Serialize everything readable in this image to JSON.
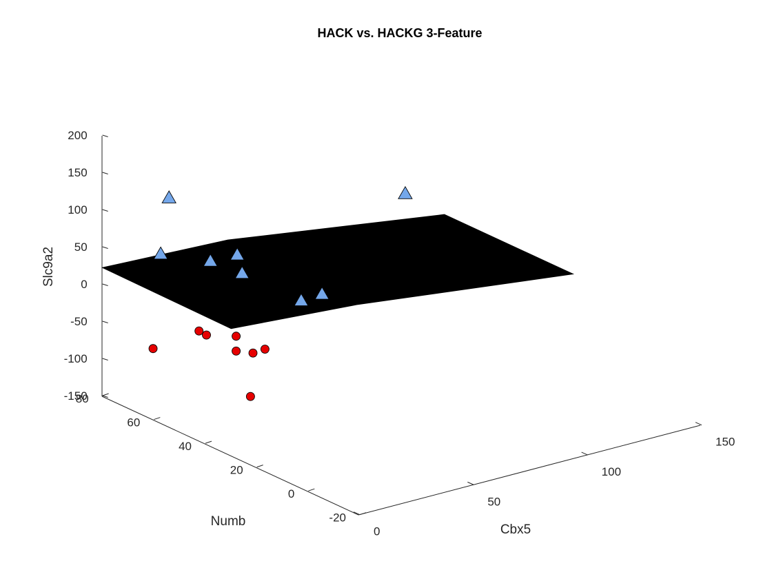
{
  "chart_data": {
    "type": "scatter",
    "title": "HACK vs. HACKG 3-Feature",
    "xlabel": "Cbx5",
    "ylabel": "Numb",
    "zlabel": "Slc9a2",
    "xlim": [
      0,
      150
    ],
    "ylim": [
      -20,
      80
    ],
    "zlim": [
      -150,
      200
    ],
    "x_ticks": [
      "0",
      "50",
      "100",
      "150"
    ],
    "y_ticks": [
      "-20",
      "0",
      "20",
      "40",
      "60",
      "80"
    ],
    "z_ticks": [
      "-150",
      "-100",
      "-50",
      "0",
      "50",
      "100",
      "150",
      "200"
    ],
    "grid": false,
    "series": [
      {
        "marker": "triangle",
        "color": "#74a7ea",
        "points": [
          {
            "x": 10,
            "y": 63,
            "z": 135
          },
          {
            "x": 12,
            "y": 68,
            "z": 50
          },
          {
            "x": 18,
            "y": 54,
            "z": 58
          },
          {
            "x": 23,
            "y": 48,
            "z": 72
          },
          {
            "x": 24,
            "y": 47,
            "z": 48
          },
          {
            "x": 33,
            "y": 32,
            "z": 28
          },
          {
            "x": 41,
            "y": 31,
            "z": 32
          },
          {
            "x": 108,
            "y": 58,
            "z": 70
          }
        ]
      },
      {
        "marker": "circle",
        "color": "#e60000",
        "points": [
          {
            "x": 3,
            "y": 63,
            "z": -62
          },
          {
            "x": 13,
            "y": 54,
            "z": -32
          },
          {
            "x": 14,
            "y": 52,
            "z": -35
          },
          {
            "x": 18,
            "y": 44,
            "z": -27
          },
          {
            "x": 18,
            "y": 44,
            "z": -47
          },
          {
            "x": 13,
            "y": 34,
            "z": -88
          },
          {
            "x": 22,
            "y": 41,
            "z": -48
          },
          {
            "x": 25,
            "y": 39,
            "z": -42
          }
        ]
      }
    ],
    "plane": {
      "color": "#000000",
      "corners": [
        {
          "x": 0,
          "y": 80,
          "z": 22
        },
        {
          "x": 55,
          "y": 80,
          "z": 15
        },
        {
          "x": 150,
          "y": 80,
          "z": -27
        },
        {
          "x": 0,
          "y": 30,
          "z": 20
        },
        {
          "x": 55,
          "y": 30,
          "z": 8
        },
        {
          "x": 150,
          "y": 30,
          "z": -27
        }
      ]
    }
  }
}
